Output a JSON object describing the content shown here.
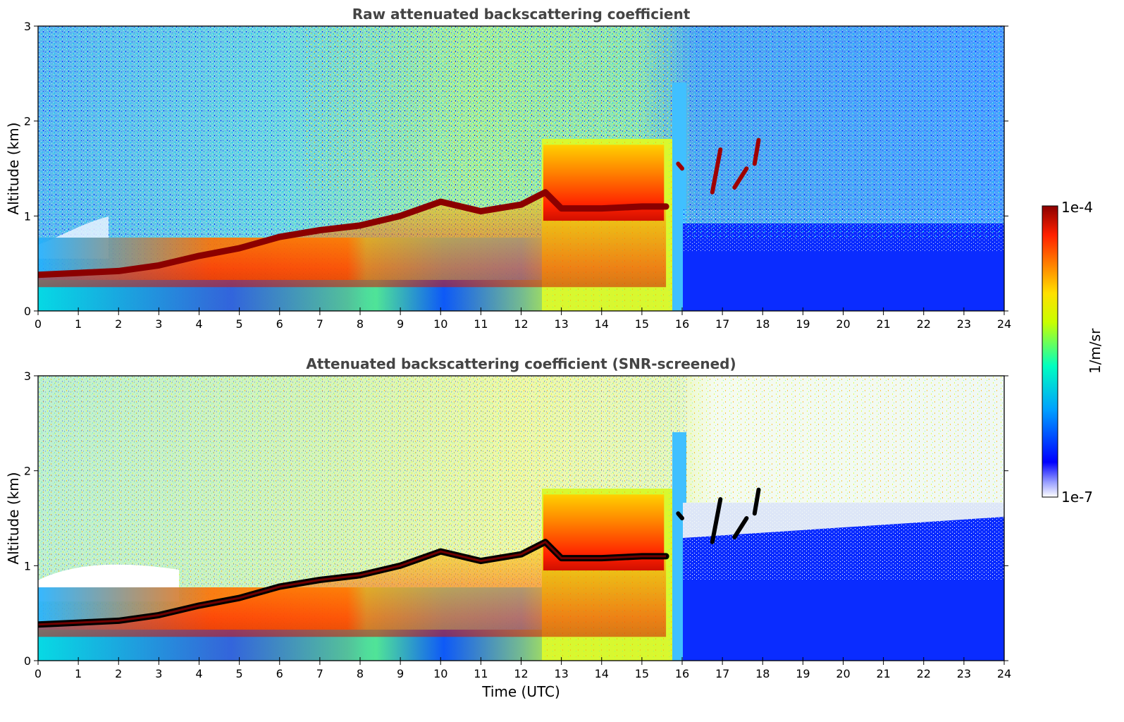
{
  "chart_data": [
    {
      "type": "heatmap",
      "title": "Raw attenuated backscattering coefficient",
      "xlabel": "",
      "ylabel": "Altitude (km)",
      "xlim": [
        0,
        24
      ],
      "ylim": [
        0,
        3
      ],
      "xticks": [
        "0",
        "1",
        "2",
        "3",
        "4",
        "5",
        "6",
        "7",
        "8",
        "9",
        "10",
        "11",
        "12",
        "13",
        "14",
        "15",
        "16",
        "17",
        "18",
        "19",
        "20",
        "21",
        "22",
        "23",
        "24"
      ],
      "yticks": [
        "0",
        "1",
        "2",
        "3"
      ],
      "layer_top_km": [
        [
          0,
          0.38
        ],
        [
          1,
          0.4
        ],
        [
          2,
          0.42
        ],
        [
          3,
          0.48
        ],
        [
          4,
          0.58
        ],
        [
          5,
          0.66
        ],
        [
          6,
          0.78
        ],
        [
          7,
          0.85
        ],
        [
          8,
          0.9
        ],
        [
          9,
          1.0
        ],
        [
          10,
          1.15
        ],
        [
          11,
          1.05
        ],
        [
          12,
          1.12
        ],
        [
          12.6,
          1.25
        ],
        [
          13,
          1.08
        ],
        [
          14,
          1.08
        ],
        [
          15,
          1.1
        ],
        [
          15.6,
          1.1
        ]
      ],
      "elevated_cloud_segments": [
        {
          "x": [
            15.9,
            16.0
          ],
          "y": [
            1.55,
            1.5
          ]
        },
        {
          "x": [
            16.75,
            16.95
          ],
          "y": [
            1.25,
            1.7
          ]
        },
        {
          "x": [
            17.3,
            17.6
          ],
          "y": [
            1.3,
            1.5
          ]
        },
        {
          "x": [
            17.8,
            17.9
          ],
          "y": [
            1.55,
            1.8
          ]
        }
      ],
      "screened": false
    },
    {
      "type": "heatmap",
      "title": "Attenuated backscattering coefficient (SNR-screened)",
      "xlabel": "Time (UTC)",
      "ylabel": "Altitude (km)",
      "xlim": [
        0,
        24
      ],
      "ylim": [
        0,
        3
      ],
      "xticks": [
        "0",
        "1",
        "2",
        "3",
        "4",
        "5",
        "6",
        "7",
        "8",
        "9",
        "10",
        "11",
        "12",
        "13",
        "14",
        "15",
        "16",
        "17",
        "18",
        "19",
        "20",
        "21",
        "22",
        "23",
        "24"
      ],
      "yticks": [
        "0",
        "1",
        "2",
        "3"
      ],
      "layer_top_km": [
        [
          0,
          0.38
        ],
        [
          1,
          0.4
        ],
        [
          2,
          0.42
        ],
        [
          3,
          0.48
        ],
        [
          4,
          0.58
        ],
        [
          5,
          0.66
        ],
        [
          6,
          0.78
        ],
        [
          7,
          0.85
        ],
        [
          8,
          0.9
        ],
        [
          9,
          1.0
        ],
        [
          10,
          1.15
        ],
        [
          11,
          1.05
        ],
        [
          12,
          1.12
        ],
        [
          12.6,
          1.25
        ],
        [
          13,
          1.08
        ],
        [
          14,
          1.08
        ],
        [
          15,
          1.1
        ],
        [
          15.6,
          1.1
        ]
      ],
      "elevated_cloud_segments": [
        {
          "x": [
            15.9,
            16.0
          ],
          "y": [
            1.55,
            1.5
          ]
        },
        {
          "x": [
            16.75,
            16.95
          ],
          "y": [
            1.25,
            1.7
          ]
        },
        {
          "x": [
            17.3,
            17.6
          ],
          "y": [
            1.3,
            1.5
          ]
        },
        {
          "x": [
            17.8,
            17.9
          ],
          "y": [
            1.55,
            1.8
          ]
        }
      ],
      "screened": true
    }
  ],
  "colorbar": {
    "label": "1/m/sr",
    "max_label": "1e-4",
    "min_label": "1e-7",
    "scale": "log",
    "colormap": [
      "#ffffff",
      "#0000ff",
      "#00a0ff",
      "#00ffc0",
      "#c8ff00",
      "#ffe000",
      "#ff8000",
      "#ff2000",
      "#8b0000"
    ]
  }
}
